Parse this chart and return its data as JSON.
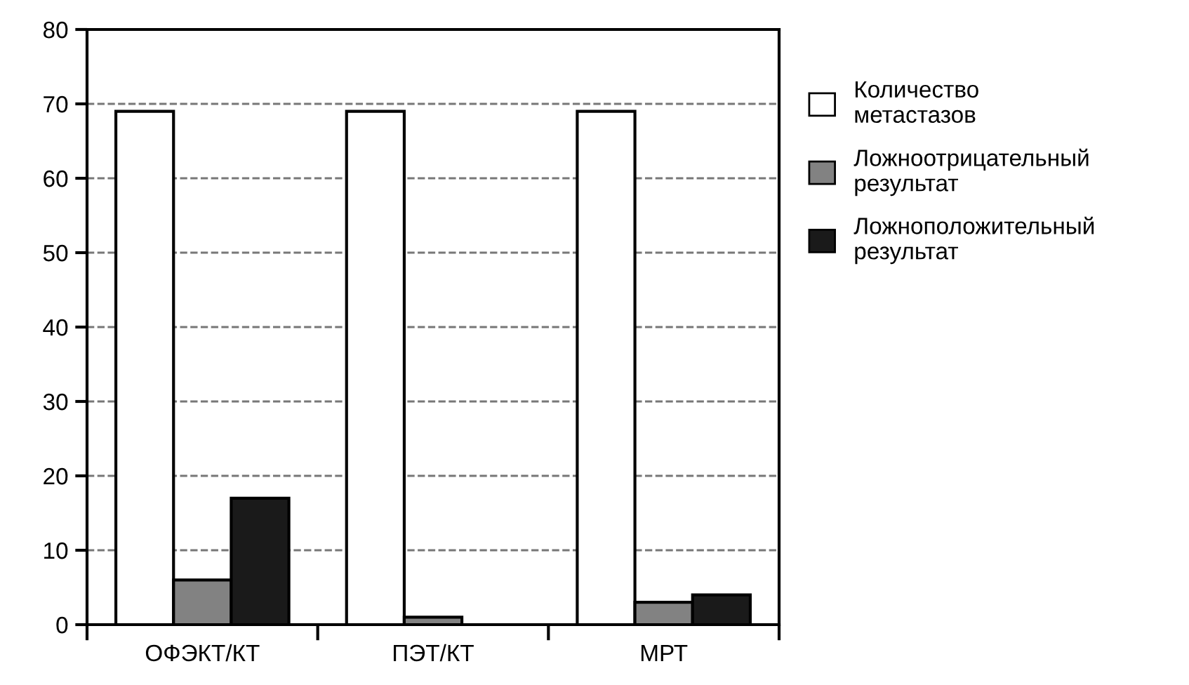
{
  "chart_data": {
    "type": "bar",
    "categories": [
      "ОФЭКТ/КТ",
      "ПЭТ/КТ",
      "МРТ"
    ],
    "series": [
      {
        "name": "Количество\nметастазов",
        "color": "#ffffff",
        "values": [
          69,
          69,
          69
        ]
      },
      {
        "name": "Ложноотрицательный\nрезультат",
        "color": "#828282",
        "values": [
          6,
          1,
          3
        ]
      },
      {
        "name": "Ложноположительный\nрезультат",
        "color": "#1a1a1a",
        "values": [
          17,
          null,
          4
        ]
      }
    ],
    "ylim": [
      0,
      80
    ],
    "yticks": [
      0,
      10,
      20,
      30,
      40,
      50,
      60,
      70,
      80
    ],
    "grid": "y",
    "legend": "right"
  }
}
